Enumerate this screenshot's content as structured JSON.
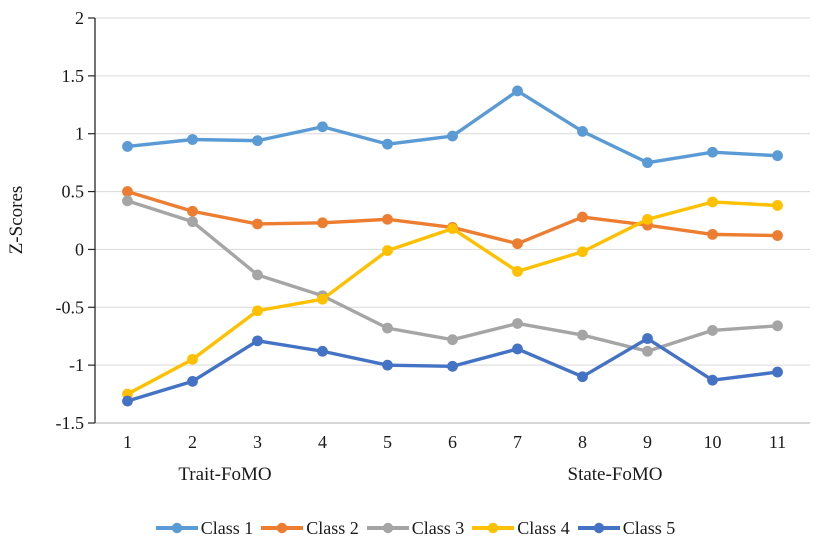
{
  "chart_data": {
    "type": "line",
    "title": "",
    "ylabel": "Z-Scores",
    "xlabel": "",
    "categories": [
      "1",
      "2",
      "3",
      "4",
      "5",
      "6",
      "7",
      "8",
      "9",
      "10",
      "11"
    ],
    "ylim": [
      -1.5,
      2
    ],
    "ytick_step": 0.5,
    "yticks": [
      2,
      1.5,
      1,
      0.5,
      0,
      -0.5,
      -1,
      -1.5
    ],
    "grid": true,
    "legend_position": "bottom",
    "x_axis_group_labels": [
      {
        "label": "Trait-FoMO",
        "center_category": 2.5
      },
      {
        "label": "State-FoMO",
        "center_category": 8.5
      }
    ],
    "series": [
      {
        "name": "Class 1",
        "color": "#5B9BD5",
        "values": [
          0.89,
          0.95,
          0.94,
          1.06,
          0.91,
          0.98,
          1.37,
          1.02,
          0.75,
          0.84,
          0.81
        ]
      },
      {
        "name": "Class 2",
        "color": "#ED7D31",
        "values": [
          0.5,
          0.33,
          0.22,
          0.23,
          0.26,
          0.19,
          0.05,
          0.28,
          0.21,
          0.13,
          0.12
        ]
      },
      {
        "name": "Class 3",
        "color": "#A5A5A5",
        "values": [
          0.42,
          0.24,
          -0.22,
          -0.4,
          -0.68,
          -0.78,
          -0.64,
          -0.74,
          -0.88,
          -0.7,
          -0.66
        ]
      },
      {
        "name": "Class 4",
        "color": "#FFC000",
        "values": [
          -1.25,
          -0.95,
          -0.53,
          -0.43,
          -0.01,
          0.18,
          -0.19,
          -0.02,
          0.26,
          0.41,
          0.38
        ]
      },
      {
        "name": "Class 5",
        "color": "#4472C4",
        "values": [
          -1.31,
          -1.14,
          -0.79,
          -0.88,
          -1.0,
          -1.01,
          -0.86,
          -1.1,
          -0.77,
          -1.13,
          -1.06
        ]
      }
    ],
    "colors": {
      "gridline": "#D9D9D9",
      "value_axis": "#262626",
      "category_axis": "#BFBFBF",
      "text": "#1a1a1a"
    }
  }
}
